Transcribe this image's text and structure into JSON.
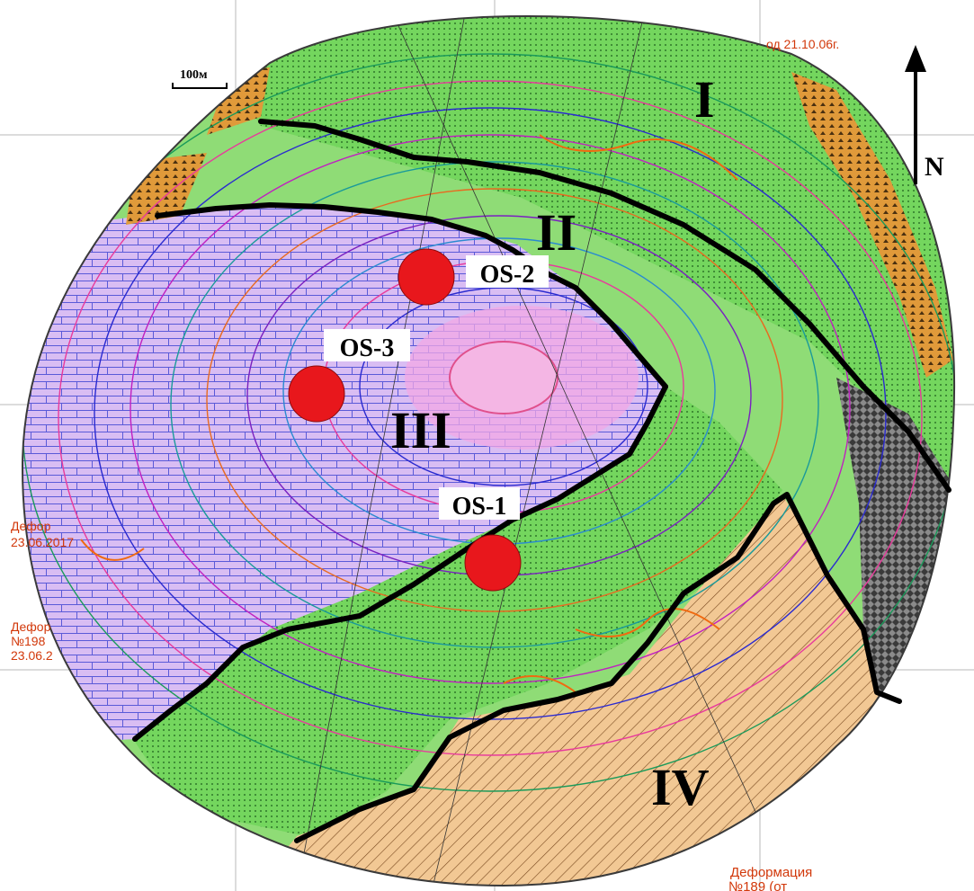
{
  "scale_bar": {
    "label": "100м"
  },
  "north_arrow": {
    "label": "N"
  },
  "zones": [
    {
      "id": "zone-1",
      "label": "I"
    },
    {
      "id": "zone-2",
      "label": "II"
    },
    {
      "id": "zone-3",
      "label": "III"
    },
    {
      "id": "zone-4",
      "label": "IV"
    }
  ],
  "observation_stations": [
    {
      "id": "os-1",
      "label": "OS-1"
    },
    {
      "id": "os-2",
      "label": "OS-2"
    },
    {
      "id": "os-3",
      "label": "OS-3"
    }
  ],
  "annotations": {
    "top_date": "од 21.10.06г.",
    "deformation_bottom_1": "Деформация",
    "deformation_bottom_2": "№189 (от",
    "deformation_left_1": "Дефор",
    "deformation_left_2": "№198",
    "deformation_left_3": "23.06.2",
    "deformation_left_upper_1": "Дефор",
    "deformation_left_upper_2": "23.06.2017"
  },
  "colors": {
    "station_marker": "#e8171c",
    "limestone_fill": "#d7b8f0",
    "green_band": "#6fd35a",
    "sand_fill": "#f3c996",
    "fault_line": "#000000"
  }
}
